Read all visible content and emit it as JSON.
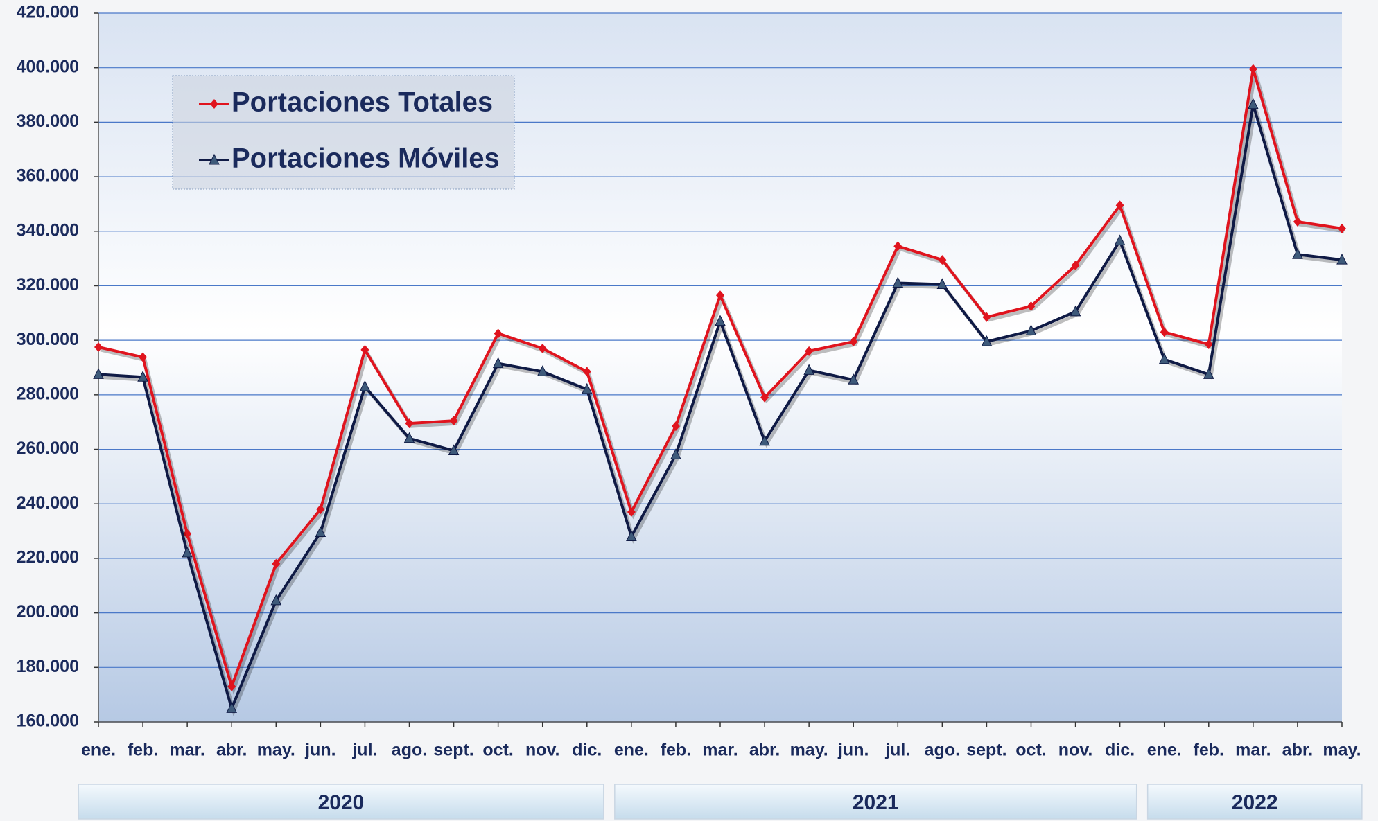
{
  "chart_data": {
    "type": "line",
    "category_groups": [
      {
        "label": "2020",
        "categories": [
          "ene.",
          "feb.",
          "mar.",
          "abr.",
          "may.",
          "jun.",
          "jul.",
          "ago.",
          "sept.",
          "oct.",
          "nov.",
          "dic."
        ]
      },
      {
        "label": "2021",
        "categories": [
          "ene.",
          "feb.",
          "mar.",
          "abr.",
          "may.",
          "jun.",
          "jul.",
          "ago.",
          "sept.",
          "oct.",
          "nov.",
          "dic."
        ]
      },
      {
        "label": "2022",
        "categories": [
          "ene.",
          "feb.",
          "mar.",
          "abr.",
          "may."
        ]
      }
    ],
    "series": [
      {
        "name": "Portaciones Totales",
        "color": "#e0141e",
        "marker": "diamond",
        "values": [
          297500,
          293800,
          229000,
          173000,
          218000,
          238000,
          296500,
          269500,
          270500,
          302500,
          297000,
          288500,
          237000,
          268500,
          316500,
          279000,
          296000,
          299500,
          334500,
          329500,
          308500,
          312500,
          327500,
          349500,
          303000,
          298500,
          399500,
          343500,
          341000
        ]
      },
      {
        "name": "Portaciones Móviles",
        "color": "#0f1a45",
        "marker": "triangle",
        "values": [
          287500,
          286500,
          222000,
          165000,
          204500,
          229500,
          283000,
          264000,
          259500,
          291500,
          288500,
          282000,
          228000,
          258000,
          307000,
          263000,
          289000,
          285500,
          321000,
          320500,
          299500,
          303500,
          310500,
          336500,
          293000,
          287500,
          386500,
          331500,
          329500
        ]
      }
    ],
    "ylim": [
      160000,
      420000
    ],
    "yticks": [
      {
        "value": 160000,
        "label": "160.000"
      },
      {
        "value": 180000,
        "label": "180.000"
      },
      {
        "value": 200000,
        "label": "200.000"
      },
      {
        "value": 220000,
        "label": "220.000"
      },
      {
        "value": 240000,
        "label": "240.000"
      },
      {
        "value": 260000,
        "label": "260.000"
      },
      {
        "value": 280000,
        "label": "280.000"
      },
      {
        "value": 300000,
        "label": "300.000"
      },
      {
        "value": 320000,
        "label": "320.000"
      },
      {
        "value": 340000,
        "label": "340.000"
      },
      {
        "value": 360000,
        "label": "360.000"
      },
      {
        "value": 380000,
        "label": "380.000"
      },
      {
        "value": 400000,
        "label": "400.000"
      },
      {
        "value": 420000,
        "label": "420.000"
      }
    ],
    "grid": true
  }
}
